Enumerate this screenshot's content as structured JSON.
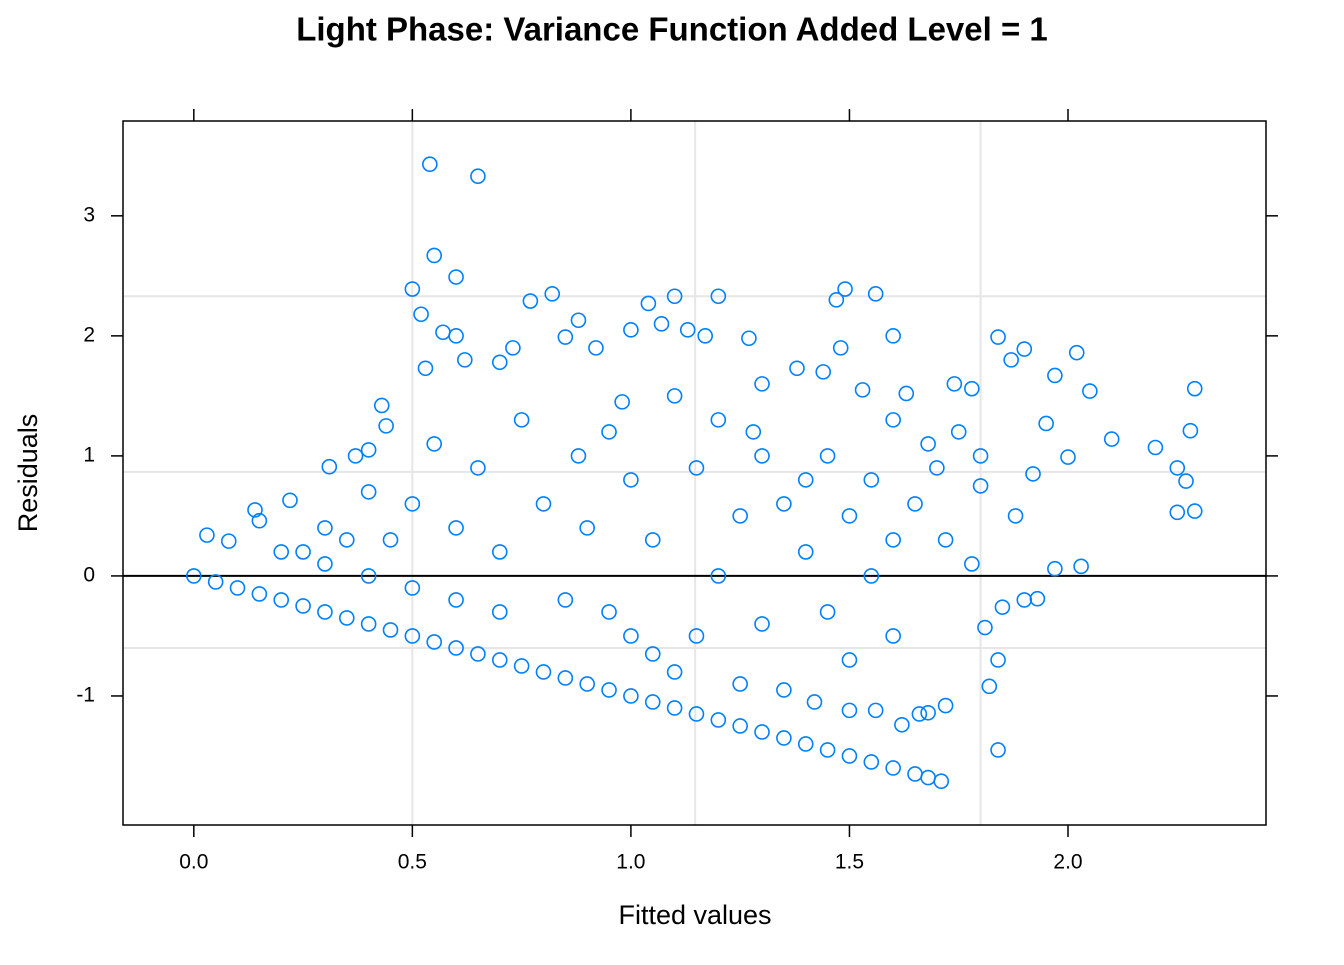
{
  "chart_data": {
    "type": "scatter",
    "title": "Light Phase: Variance Function Added Level = 1",
    "x_label": "Fitted values",
    "y_label": "Residuals",
    "color": "#0080ff",
    "xlim": [
      -0.162,
      2.453
    ],
    "ylim": [
      -2.075,
      3.79
    ],
    "xticks": [
      {
        "value": 0,
        "label": "0.0"
      },
      0.5,
      {
        "value": 1,
        "label": "1.0"
      },
      1.5,
      {
        "value": 2,
        "label": "2.0"
      }
    ],
    "yticks": [
      -1,
      0,
      1,
      2,
      3
    ],
    "xgrid": [
      0.5,
      1.147,
      1.8
    ],
    "ygrid": [
      2.33,
      0.867,
      -0.6
    ],
    "hline": 0,
    "x": [
      0,
      0.05,
      0.1,
      0.15,
      0.2,
      0.25,
      0.3,
      0.35,
      0.4,
      0.45,
      0.5,
      0.55,
      0.6,
      0.65,
      0.7,
      0.75,
      0.8,
      0.85,
      0.9,
      0.95,
      1.0,
      1.05,
      1.1,
      1.15,
      1.2,
      1.25,
      1.3,
      1.35,
      1.4,
      1.45,
      1.5,
      1.55,
      1.6,
      1.65,
      1.68,
      1.71,
      0.2,
      0.3,
      0.4,
      0.5,
      0.6,
      0.7,
      0.54,
      0.65,
      0.55,
      0.6,
      0.5,
      0.52,
      0.82,
      0.77,
      1.1,
      1.2,
      1.04,
      1.49,
      1.56,
      1.47,
      1.0,
      1.13,
      1.27,
      1.6,
      1.84,
      1.9,
      2.02,
      2.29,
      2.28,
      2.25,
      2.27,
      2.25,
      2.29,
      2.2,
      2.1,
      2.05,
      1.97,
      1.95,
      2.0,
      2.03,
      1.97,
      1.9,
      1.93,
      1.85,
      1.84,
      1.82,
      1.84,
      1.81,
      1.72,
      1.68,
      1.66,
      1.62,
      1.5,
      1.42,
      1.56,
      0.03,
      0.08,
      0.14,
      0.15,
      0.22,
      0.31,
      0.43,
      0.44,
      0.4,
      0.37,
      0.6,
      0.57,
      0.62,
      0.53,
      0.7,
      0.73,
      0.85,
      0.88,
      0.92,
      1.07,
      1.17,
      1.3,
      1.38,
      1.53,
      1.63,
      1.74,
      1.78,
      1.87,
      1.75,
      1.8,
      1.7,
      1.65,
      1.72,
      1.78,
      1.8,
      1.88,
      1.92,
      1.6,
      1.55,
      1.6,
      1.5,
      1.45,
      1.4,
      1.35,
      1.3,
      1.25,
      1.2,
      1.15,
      1.1,
      1.25,
      1.35,
      1.3,
      1.05,
      1.0,
      0.95,
      0.9,
      0.85,
      0.8,
      0.75,
      0.7,
      0.65,
      0.6,
      0.55,
      0.5,
      0.45,
      0.4,
      0.35,
      0.3,
      0.25,
      1.0,
      0.95,
      1.05,
      1.15,
      1.2,
      1.45,
      1.5,
      1.4,
      1.28,
      1.1,
      0.98,
      0.88,
      1.6,
      1.55,
      1.68,
      1.48,
      1.44
    ],
    "values": [
      0,
      -0.05,
      -0.1,
      -0.15,
      -0.2,
      -0.25,
      -0.3,
      -0.35,
      -0.4,
      -0.45,
      -0.5,
      -0.55,
      -0.6,
      -0.65,
      -0.7,
      -0.75,
      -0.8,
      -0.85,
      -0.9,
      -0.95,
      -1.0,
      -1.05,
      -1.1,
      -1.15,
      -1.2,
      -1.25,
      -1.3,
      -1.35,
      -1.4,
      -1.45,
      -1.5,
      -1.55,
      -1.6,
      -1.65,
      -1.68,
      -1.71,
      0.2,
      0.1,
      0,
      -0.1,
      -0.2,
      -0.3,
      3.43,
      3.33,
      2.67,
      2.49,
      2.39,
      2.18,
      2.35,
      2.29,
      2.33,
      2.33,
      2.27,
      2.39,
      2.35,
      2.3,
      2.05,
      2.05,
      1.98,
      2.0,
      1.99,
      1.89,
      1.86,
      1.56,
      1.21,
      0.9,
      0.79,
      0.53,
      0.54,
      1.07,
      1.14,
      1.54,
      1.67,
      1.27,
      0.99,
      0.08,
      0.06,
      -0.2,
      -0.19,
      -0.26,
      -1.45,
      -0.92,
      -0.7,
      -0.43,
      -1.08,
      -1.14,
      -1.15,
      -1.24,
      -1.12,
      -1.05,
      -1.12,
      0.34,
      0.29,
      0.55,
      0.46,
      0.63,
      0.91,
      1.42,
      1.25,
      1.05,
      1.0,
      2.0,
      2.03,
      1.8,
      1.73,
      1.78,
      1.9,
      1.99,
      2.13,
      1.9,
      2.1,
      2.0,
      1.6,
      1.73,
      1.55,
      1.52,
      1.6,
      1.56,
      1.8,
      1.2,
      1.0,
      0.9,
      0.6,
      0.3,
      0.1,
      0.75,
      0.5,
      0.85,
      0.3,
      0.0,
      -0.5,
      -0.7,
      -0.3,
      0.2,
      0.6,
      1.0,
      0.5,
      0.0,
      -0.5,
      -0.8,
      -0.9,
      -0.95,
      -0.4,
      0.3,
      0.8,
      1.2,
      0.4,
      -0.2,
      0.6,
      1.3,
      0.2,
      0.9,
      0.4,
      1.1,
      0.6,
      0.3,
      0.7,
      0.3,
      0.4,
      0.2,
      -0.5,
      -0.3,
      -0.65,
      0.9,
      1.3,
      1.0,
      0.5,
      0.8,
      1.2,
      1.5,
      1.45,
      1.0,
      1.3,
      0.8,
      1.1,
      1.9,
      1.7
    ]
  }
}
